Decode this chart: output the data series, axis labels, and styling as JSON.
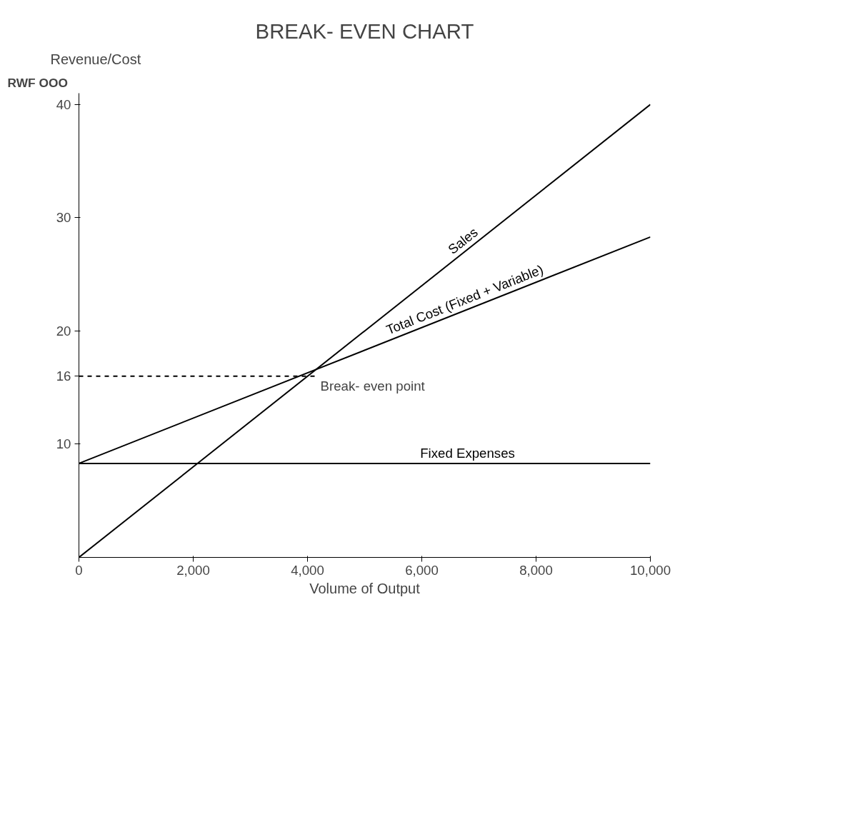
{
  "chart_data": {
    "type": "line",
    "title": "BREAK- EVEN CHART",
    "ylabel": "Revenue/Cost",
    "xlabel": "Volume of Output",
    "annotations": [
      "RWF OOO",
      {
        "text": "Break- even point",
        "x": 4150,
        "y": 16
      }
    ],
    "series": [
      {
        "name": "Sales",
        "color": "#000000",
        "x": [
          0,
          10000
        ],
        "values": [
          0,
          40
        ]
      },
      {
        "name": "Total Cost (Fixed + Variable)",
        "color": "#000000",
        "x": [
          0,
          10000
        ],
        "values": [
          8.3,
          28.3
        ]
      },
      {
        "name": "Fixed Expenses",
        "color": "#000000",
        "x": [
          0,
          10000
        ],
        "values": [
          8.3,
          8.3
        ]
      },
      {
        "color": "#000000",
        "x": [
          0,
          4150
        ],
        "values": [
          16,
          16
        ],
        "line_style": "dashed"
      }
    ],
    "xlim": [
      0,
      10000
    ],
    "ylim": [
      0,
      41
    ],
    "xticks": [
      0,
      {
        "value": 2000,
        "label": "2,000"
      },
      {
        "value": 4000,
        "label": "4,000"
      },
      {
        "value": 6000,
        "label": "6,000"
      },
      {
        "value": 8000,
        "label": "8,000"
      },
      {
        "value": 10000,
        "label": "10,000"
      }
    ],
    "yticks": [
      10,
      16,
      20,
      30,
      40
    ],
    "grid": false,
    "marker": "none",
    "line_style": "solid"
  }
}
